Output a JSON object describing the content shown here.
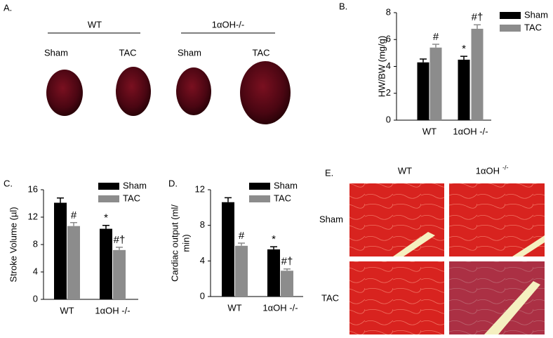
{
  "chart_data": [
    {
      "type": "bar",
      "panel": "B.",
      "ylabel": [
        "HW/BW (mg/g)"
      ],
      "categories": [
        "WT",
        "1αOH -/-"
      ],
      "series": [
        {
          "name": "Sham",
          "color": "#000000",
          "values": [
            4.3,
            4.5
          ],
          "errors": [
            0.25,
            0.25
          ],
          "annotations": [
            null,
            "*"
          ]
        },
        {
          "name": "TAC",
          "color": "#8c8c8c",
          "values": [
            5.4,
            6.8
          ],
          "errors": [
            0.25,
            0.3
          ],
          "annotations": [
            "#",
            "#†"
          ]
        }
      ],
      "ylim": [
        0,
        8
      ],
      "yticks": [
        0,
        2,
        4,
        6,
        8
      ],
      "legend": "upper right"
    },
    {
      "type": "bar",
      "panel": "C.",
      "ylabel": [
        "Stroke Volume (µl)"
      ],
      "categories": [
        "WT",
        "1αOH -/-"
      ],
      "series": [
        {
          "name": "Sham",
          "color": "#000000",
          "values": [
            14.1,
            10.3
          ],
          "errors": [
            0.7,
            0.5
          ],
          "annotations": [
            null,
            "*"
          ]
        },
        {
          "name": "TAC",
          "color": "#8c8c8c",
          "values": [
            10.7,
            7.2
          ],
          "errors": [
            0.5,
            0.4
          ],
          "annotations": [
            "#",
            "#†"
          ]
        }
      ],
      "ylim": [
        0,
        16
      ],
      "yticks": [
        0,
        4,
        8,
        12,
        16
      ],
      "legend": "upper right"
    },
    {
      "type": "bar",
      "panel": "D.",
      "ylabel": [
        "Cardiac output (ml/",
        "min)"
      ],
      "categories": [
        "WT",
        "1αOH -/-"
      ],
      "series": [
        {
          "name": "Sham",
          "color": "#000000",
          "values": [
            10.6,
            5.3
          ],
          "errors": [
            0.5,
            0.3
          ],
          "annotations": [
            null,
            "*"
          ]
        },
        {
          "name": "TAC",
          "color": "#8c8c8c",
          "values": [
            5.7,
            2.9
          ],
          "errors": [
            0.3,
            0.2
          ],
          "annotations": [
            "#",
            "#†"
          ]
        }
      ],
      "ylim": [
        0,
        12
      ],
      "yticks": [
        0,
        4,
        8,
        12
      ],
      "legend": "upper right"
    }
  ],
  "panel_a": {
    "label": "A.",
    "groups": [
      "WT",
      "1αOH-/-"
    ],
    "conditions": [
      "Sham",
      "TAC",
      "Sham",
      "TAC"
    ]
  },
  "panel_e": {
    "label": "E.",
    "columns": [
      "WT",
      "1αOH",
      "-/-"
    ],
    "rows": [
      "Sham",
      "TAC"
    ]
  }
}
